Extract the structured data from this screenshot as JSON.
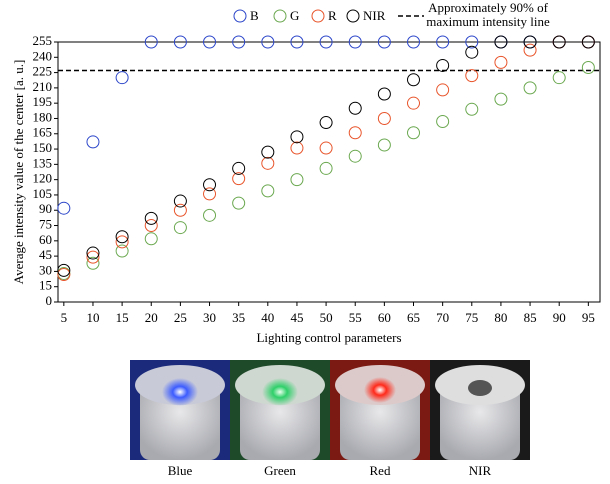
{
  "chart_data": {
    "type": "scatter",
    "x_label": "Lighting control parameters",
    "y_label": "Average intensity value of the center [a. u.]",
    "x": [
      5,
      10,
      15,
      20,
      25,
      30,
      35,
      40,
      45,
      50,
      55,
      60,
      65,
      70,
      75,
      80,
      85,
      90,
      95
    ],
    "xlim": [
      4,
      97
    ],
    "xticks": [
      5,
      10,
      15,
      20,
      25,
      30,
      35,
      40,
      45,
      50,
      55,
      60,
      65,
      70,
      75,
      80,
      85,
      90,
      95
    ],
    "ylim": [
      0,
      255
    ],
    "yticks": [
      0,
      15,
      30,
      45,
      60,
      75,
      90,
      105,
      120,
      135,
      150,
      165,
      180,
      195,
      210,
      225,
      240,
      255
    ],
    "grid": false,
    "legend": "top",
    "series": [
      {
        "name": "B",
        "color": "#2b45c9",
        "values": [
          92,
          157,
          220,
          255,
          255,
          255,
          255,
          255,
          255,
          255,
          255,
          255,
          255,
          255,
          255,
          255,
          255,
          255,
          255
        ]
      },
      {
        "name": "G",
        "color": "#6aa84f",
        "values": [
          28,
          38,
          50,
          62,
          73,
          85,
          97,
          109,
          120,
          131,
          143,
          154,
          166,
          177,
          189,
          199,
          210,
          220,
          230
        ]
      },
      {
        "name": "R",
        "color": "#e8542a",
        "values": [
          27,
          44,
          59,
          75,
          90,
          106,
          121,
          136,
          151,
          151,
          166,
          180,
          195,
          208,
          222,
          235,
          247,
          255,
          255
        ]
      },
      {
        "name": "NIR",
        "color": "#000000",
        "values": [
          31,
          48,
          64,
          82,
          99,
          115,
          131,
          147,
          162,
          176,
          190,
          204,
          218,
          232,
          245,
          255,
          255,
          255,
          255
        ]
      }
    ],
    "reference_line": {
      "value": 227,
      "label": [
        "Approximately 90% of",
        "maximum intensity line"
      ]
    }
  },
  "photos": {
    "captions": [
      "Blue",
      "Green",
      "Red",
      "NIR"
    ]
  }
}
